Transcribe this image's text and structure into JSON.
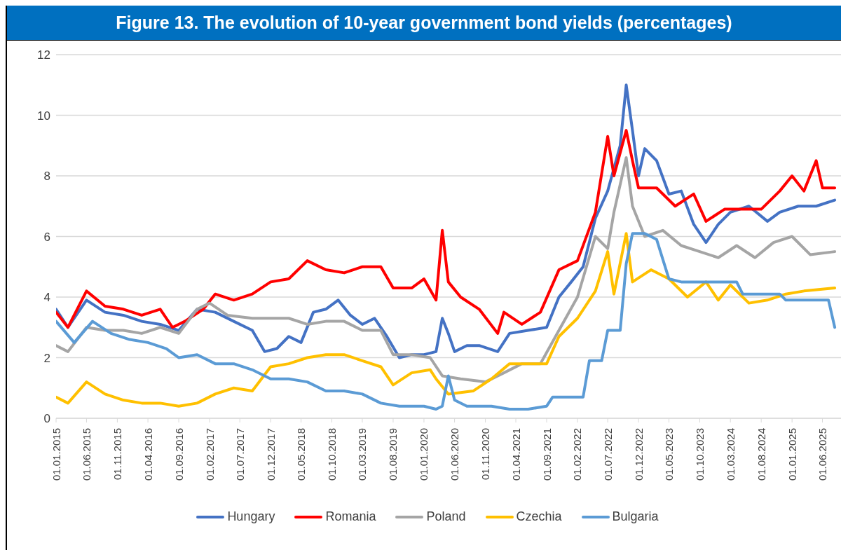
{
  "chart_data": {
    "type": "line",
    "title": "Figure 13. The evolution of 10-year government bond yields (percentages)",
    "xlim": [
      "2015-01-01",
      "2025-09-01"
    ],
    "xticks": [
      {
        "value": "2015-01-01",
        "label": "01.01.2015"
      },
      {
        "value": "2015-06-01",
        "label": "01.06.2015"
      },
      {
        "value": "2015-11-01",
        "label": "01.11.2015"
      },
      {
        "value": "2016-04-01",
        "label": "01.04.2016"
      },
      {
        "value": "2016-09-01",
        "label": "01.09.2016"
      },
      {
        "value": "2017-02-01",
        "label": "01.02.2017"
      },
      {
        "value": "2017-07-01",
        "label": "01.07.2017"
      },
      {
        "value": "2017-12-01",
        "label": "01.12.2017"
      },
      {
        "value": "2018-05-01",
        "label": "01.05.2018"
      },
      {
        "value": "2018-10-01",
        "label": "01.10.2018"
      },
      {
        "value": "2019-03-01",
        "label": "01.03.2019"
      },
      {
        "value": "2019-08-01",
        "label": "01.08.2019"
      },
      {
        "value": "2020-01-01",
        "label": "01.01.2020"
      },
      {
        "value": "2020-06-01",
        "label": "01.06.2020"
      },
      {
        "value": "2020-11-01",
        "label": "01.11.2020"
      },
      {
        "value": "2021-04-01",
        "label": "01.04.2021"
      },
      {
        "value": "2021-09-01",
        "label": "01.09.2021"
      },
      {
        "value": "2022-02-01",
        "label": "01.02.2022"
      },
      {
        "value": "2022-07-01",
        "label": "01.07.2022"
      },
      {
        "value": "2022-12-01",
        "label": "01.12.2022"
      },
      {
        "value": "2023-05-01",
        "label": "01.05.2023"
      },
      {
        "value": "2023-10-01",
        "label": "01.10.2023"
      },
      {
        "value": "2024-03-01",
        "label": "01.03.2024"
      },
      {
        "value": "2024-08-01",
        "label": "01.08.2024"
      },
      {
        "value": "2025-01-01",
        "label": "01.01.2025"
      },
      {
        "value": "2025-06-01",
        "label": "01.06.2025"
      }
    ],
    "ylim": [
      0,
      12
    ],
    "yticks": [
      0,
      2,
      4,
      6,
      8,
      10,
      12
    ],
    "grid": "y",
    "legend": "bottom",
    "marker": "none",
    "line_style": "solid",
    "series": [
      {
        "name": "Hungary",
        "color": "#4472c4",
        "x": [
          "2015-01",
          "2015-03",
          "2015-06",
          "2015-09",
          "2015-12",
          "2016-03",
          "2016-06",
          "2016-09",
          "2016-12",
          "2017-03",
          "2017-06",
          "2017-09",
          "2017-11",
          "2018-01",
          "2018-03",
          "2018-05",
          "2018-07",
          "2018-09",
          "2018-11",
          "2019-01",
          "2019-03",
          "2019-05",
          "2019-07",
          "2019-09",
          "2019-11",
          "2020-01",
          "2020-03",
          "2020-04",
          "2020-05",
          "2020-06",
          "2020-08",
          "2020-10",
          "2021-01",
          "2021-03",
          "2021-06",
          "2021-09",
          "2021-11",
          "2022-01",
          "2022-03",
          "2022-05",
          "2022-07",
          "2022-09",
          "2022-10",
          "2022-11",
          "2022-12",
          "2023-01",
          "2023-03",
          "2023-05",
          "2023-07",
          "2023-09",
          "2023-11",
          "2024-01",
          "2024-03",
          "2024-06",
          "2024-09",
          "2024-11",
          "2025-02",
          "2025-05",
          "2025-08"
        ],
        "values": [
          3.6,
          3.0,
          3.9,
          3.5,
          3.4,
          3.2,
          3.1,
          2.9,
          3.6,
          3.5,
          3.2,
          2.9,
          2.2,
          2.3,
          2.7,
          2.5,
          3.5,
          3.6,
          3.9,
          3.4,
          3.1,
          3.3,
          2.7,
          2.0,
          2.1,
          2.1,
          2.2,
          3.3,
          2.8,
          2.2,
          2.4,
          2.4,
          2.2,
          2.8,
          2.9,
          3.0,
          4.0,
          4.5,
          5.0,
          6.6,
          7.5,
          9.0,
          11.0,
          9.5,
          8.0,
          8.9,
          8.5,
          7.4,
          7.5,
          6.4,
          5.8,
          6.4,
          6.8,
          7.0,
          6.5,
          6.8,
          7.0,
          7.0,
          7.2
        ]
      },
      {
        "name": "Romania",
        "color": "#ff0000",
        "x": [
          "2015-01",
          "2015-03",
          "2015-06",
          "2015-09",
          "2015-12",
          "2016-03",
          "2016-06",
          "2016-08",
          "2016-10",
          "2017-01",
          "2017-03",
          "2017-06",
          "2017-09",
          "2017-12",
          "2018-03",
          "2018-06",
          "2018-09",
          "2018-12",
          "2019-03",
          "2019-06",
          "2019-08",
          "2019-11",
          "2020-01",
          "2020-03",
          "2020-04",
          "2020-05",
          "2020-07",
          "2020-10",
          "2021-01",
          "2021-02",
          "2021-05",
          "2021-08",
          "2021-11",
          "2022-02",
          "2022-05",
          "2022-07",
          "2022-08",
          "2022-10",
          "2022-11",
          "2022-12",
          "2023-03",
          "2023-06",
          "2023-09",
          "2023-11",
          "2024-02",
          "2024-05",
          "2024-08",
          "2024-11",
          "2025-01",
          "2025-03",
          "2025-05",
          "2025-06",
          "2025-08"
        ],
        "values": [
          3.5,
          3.0,
          4.2,
          3.7,
          3.6,
          3.4,
          3.6,
          3.0,
          3.2,
          3.6,
          4.1,
          3.9,
          4.1,
          4.5,
          4.6,
          5.2,
          4.9,
          4.8,
          5.0,
          5.0,
          4.3,
          4.3,
          4.6,
          3.9,
          6.2,
          4.5,
          4.0,
          3.6,
          2.8,
          3.5,
          3.1,
          3.5,
          4.9,
          5.2,
          6.8,
          9.3,
          8.0,
          9.5,
          8.5,
          7.6,
          7.6,
          7.0,
          7.4,
          6.5,
          6.9,
          6.9,
          6.9,
          7.5,
          8.0,
          7.5,
          8.5,
          7.6,
          7.6
        ]
      },
      {
        "name": "Poland",
        "color": "#a5a5a5",
        "x": [
          "2015-01",
          "2015-03",
          "2015-06",
          "2015-09",
          "2015-12",
          "2016-03",
          "2016-06",
          "2016-09",
          "2016-12",
          "2017-02",
          "2017-05",
          "2017-09",
          "2017-12",
          "2018-03",
          "2018-06",
          "2018-09",
          "2018-12",
          "2019-03",
          "2019-06",
          "2019-08",
          "2019-11",
          "2020-02",
          "2020-04",
          "2020-07",
          "2020-11",
          "2021-02",
          "2021-05",
          "2021-08",
          "2021-11",
          "2022-02",
          "2022-05",
          "2022-07",
          "2022-08",
          "2022-10",
          "2022-11",
          "2023-01",
          "2023-04",
          "2023-07",
          "2023-10",
          "2024-01",
          "2024-04",
          "2024-07",
          "2024-10",
          "2025-01",
          "2025-04",
          "2025-08"
        ],
        "values": [
          2.4,
          2.2,
          3.0,
          2.9,
          2.9,
          2.8,
          3.0,
          2.8,
          3.6,
          3.8,
          3.4,
          3.3,
          3.3,
          3.3,
          3.1,
          3.2,
          3.2,
          2.9,
          2.9,
          2.1,
          2.1,
          2.0,
          1.4,
          1.3,
          1.2,
          1.5,
          1.8,
          1.8,
          2.9,
          4.0,
          6.0,
          5.6,
          6.8,
          8.6,
          7.0,
          6.0,
          6.2,
          5.7,
          5.5,
          5.3,
          5.7,
          5.3,
          5.8,
          6.0,
          5.4,
          5.5
        ]
      },
      {
        "name": "Czechia",
        "color": "#ffc000",
        "x": [
          "2015-01",
          "2015-03",
          "2015-06",
          "2015-09",
          "2015-12",
          "2016-03",
          "2016-06",
          "2016-09",
          "2016-12",
          "2017-03",
          "2017-06",
          "2017-09",
          "2017-12",
          "2018-03",
          "2018-06",
          "2018-09",
          "2018-12",
          "2019-03",
          "2019-06",
          "2019-08",
          "2019-11",
          "2020-02",
          "2020-03",
          "2020-05",
          "2020-09",
          "2020-12",
          "2021-03",
          "2021-06",
          "2021-09",
          "2021-11",
          "2022-02",
          "2022-05",
          "2022-07",
          "2022-08",
          "2022-10",
          "2022-11",
          "2023-02",
          "2023-05",
          "2023-08",
          "2023-11",
          "2024-01",
          "2024-03",
          "2024-06",
          "2024-09",
          "2024-12",
          "2025-03",
          "2025-08"
        ],
        "values": [
          0.7,
          0.5,
          1.2,
          0.8,
          0.6,
          0.5,
          0.5,
          0.4,
          0.5,
          0.8,
          1.0,
          0.9,
          1.7,
          1.8,
          2.0,
          2.1,
          2.1,
          1.9,
          1.7,
          1.1,
          1.5,
          1.6,
          1.3,
          0.8,
          0.9,
          1.3,
          1.8,
          1.8,
          1.8,
          2.7,
          3.3,
          4.2,
          5.5,
          4.1,
          6.1,
          4.5,
          4.9,
          4.6,
          4.0,
          4.5,
          3.9,
          4.4,
          3.8,
          3.9,
          4.1,
          4.2,
          4.3
        ]
      },
      {
        "name": "Bulgaria",
        "color": "#5b9bd5",
        "x": [
          "2015-01",
          "2015-04",
          "2015-07",
          "2015-10",
          "2016-01",
          "2016-04",
          "2016-07",
          "2016-09",
          "2016-12",
          "2017-03",
          "2017-06",
          "2017-09",
          "2017-12",
          "2018-03",
          "2018-06",
          "2018-09",
          "2018-12",
          "2019-03",
          "2019-06",
          "2019-09",
          "2020-01",
          "2020-03",
          "2020-04",
          "2020-05",
          "2020-06",
          "2020-08",
          "2020-12",
          "2021-03",
          "2021-06",
          "2021-09",
          "2021-10",
          "2022-03",
          "2022-04",
          "2022-06",
          "2022-07",
          "2022-09",
          "2022-10",
          "2022-11",
          "2023-01",
          "2023-03",
          "2023-05",
          "2023-07",
          "2024-04",
          "2024-05",
          "2024-11",
          "2024-12",
          "2025-07",
          "2025-08"
        ],
        "values": [
          3.2,
          2.5,
          3.2,
          2.8,
          2.6,
          2.5,
          2.3,
          2.0,
          2.1,
          1.8,
          1.8,
          1.6,
          1.3,
          1.3,
          1.2,
          0.9,
          0.9,
          0.8,
          0.5,
          0.4,
          0.4,
          0.3,
          0.4,
          1.4,
          0.6,
          0.4,
          0.4,
          0.3,
          0.3,
          0.4,
          0.7,
          0.7,
          1.9,
          1.9,
          2.9,
          2.9,
          5.1,
          6.1,
          6.1,
          5.9,
          4.6,
          4.5,
          4.5,
          4.1,
          4.1,
          3.9,
          3.9,
          3.0
        ]
      }
    ]
  }
}
